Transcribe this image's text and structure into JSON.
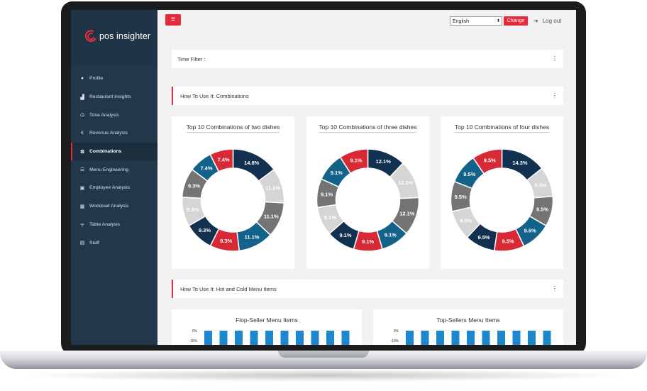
{
  "brand": {
    "name": "pos insighter"
  },
  "sidebar": {
    "items": [
      {
        "label": "Profile",
        "icon": "user-icon",
        "active": false
      },
      {
        "label": "Restaurant Insights",
        "icon": "area-chart-icon",
        "active": false
      },
      {
        "label": "Time Analysis",
        "icon": "clock-icon",
        "active": false
      },
      {
        "label": "Revenue Analysis",
        "icon": "euro-icon",
        "active": false
      },
      {
        "label": "Combinations",
        "icon": "gear-icon",
        "active": true
      },
      {
        "label": "Menu Engineering",
        "icon": "list-icon",
        "active": false
      },
      {
        "label": "Employee Analysis",
        "icon": "id-card-icon",
        "active": false
      },
      {
        "label": "Workload Analysis",
        "icon": "calendar-icon",
        "active": false
      },
      {
        "label": "Table Analysis",
        "icon": "table-icon",
        "active": false
      },
      {
        "label": "Staff",
        "icon": "address-card-icon",
        "active": false
      }
    ]
  },
  "header": {
    "menu_icon": "hamburger-icon",
    "language": {
      "selected": "English"
    },
    "change_label": "Change",
    "logout_label": "Log out"
  },
  "panels": {
    "time_filter": "Time Filter :",
    "combinations": "How To Use It: Combinations",
    "hot_cold": "How To Use It: Hot and Cold Menu Items",
    "more_glyph": "⋮"
  },
  "colors": {
    "navy": "#12304f",
    "light_gray": "#d5d5d5",
    "dark_gray": "#747474",
    "teal": "#12628a",
    "red": "#d72a35",
    "accent": "#e62b3a",
    "bar": "#1e88cf"
  },
  "chart_data": [
    {
      "type": "pie",
      "title": "Top 10 Combinations of two dishes",
      "values": [
        14.8,
        11.1,
        11.1,
        11.1,
        9.3,
        9.3,
        9.3,
        9.3,
        7.4,
        7.4
      ],
      "labels": [
        "14.8%",
        "11.1%",
        "11.1%",
        "11.1%",
        "9.3%",
        "9.3%",
        "9.3%",
        "9.3%",
        "7.4%",
        "7.4%"
      ],
      "colors": [
        "navy",
        "light_gray",
        "dark_gray",
        "teal",
        "red",
        "navy",
        "light_gray",
        "dark_gray",
        "teal",
        "red"
      ]
    },
    {
      "type": "pie",
      "title": "Top 10 Combinations of three dishes",
      "values": [
        12.1,
        12.1,
        12.1,
        9.1,
        9.1,
        9.1,
        9.1,
        9.1,
        9.1,
        9.1
      ],
      "labels": [
        "12.1%",
        "12.1%",
        "12.1%",
        "9.1%",
        "9.1%",
        "9.1%",
        "9.1%",
        "9.1%",
        "9.1%",
        "9.1%"
      ],
      "colors": [
        "navy",
        "light_gray",
        "dark_gray",
        "teal",
        "red",
        "navy",
        "light_gray",
        "dark_gray",
        "teal",
        "red"
      ]
    },
    {
      "type": "pie",
      "title": "Top 10 Combinations of four dishes",
      "values": [
        14.3,
        9.5,
        9.5,
        9.5,
        9.5,
        9.5,
        9.5,
        9.5,
        9.5,
        9.5
      ],
      "labels": [
        "14.3%",
        "9.5%",
        "9.5%",
        "9.5%",
        "9.5%",
        "9.5%",
        "9.5%",
        "9.5%",
        "9.5%",
        "9.5%"
      ],
      "colors": [
        "navy",
        "light_gray",
        "dark_gray",
        "teal",
        "red",
        "navy",
        "light_gray",
        "dark_gray",
        "teal",
        "red"
      ]
    },
    {
      "type": "bar",
      "title": "Flop-Seller Menu Items",
      "yticks": [
        "0%",
        "-10%"
      ],
      "bar_count": 10
    },
    {
      "type": "bar",
      "title": "Top-Sellers Menu Items",
      "yticks": [
        "0%",
        "-10%"
      ],
      "bar_count": 10
    }
  ]
}
